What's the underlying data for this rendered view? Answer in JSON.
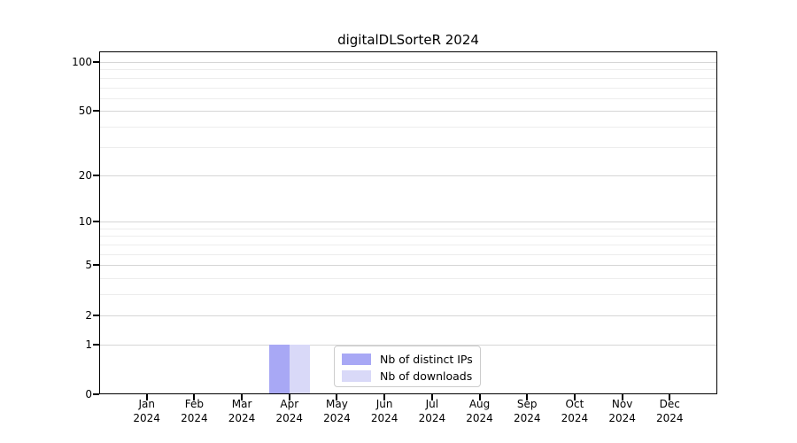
{
  "chart_data": {
    "type": "bar",
    "title": "digitalDLSorteR 2024",
    "categories": [
      "Jan",
      "Feb",
      "Mar",
      "Apr",
      "May",
      "Jun",
      "Jul",
      "Aug",
      "Sep",
      "Oct",
      "Nov",
      "Dec"
    ],
    "x_year": "2024",
    "series": [
      {
        "name": "Nb of distinct IPs",
        "color": "#a8a8f5",
        "values": [
          0,
          0,
          0,
          1,
          0,
          0,
          0,
          0,
          0,
          0,
          0,
          0
        ]
      },
      {
        "name": "Nb of downloads",
        "color": "#d9d9f8",
        "values": [
          0,
          0,
          0,
          1,
          0,
          0,
          0,
          0,
          0,
          0,
          0,
          0
        ]
      }
    ],
    "scale": "log1p",
    "ylim": [
      0,
      116
    ],
    "y_ticks": [
      0,
      1,
      2,
      5,
      10,
      20,
      50,
      100
    ],
    "y_minor_ticks": [
      3,
      4,
      6,
      7,
      8,
      9,
      30,
      40,
      60,
      70,
      80,
      90
    ],
    "grid": true,
    "legend_position": "lower-center-inside",
    "colors": {
      "major_grid": "#d6d6d6",
      "minor_grid": "#ededed",
      "axis": "#000000",
      "background": "#ffffff"
    }
  }
}
